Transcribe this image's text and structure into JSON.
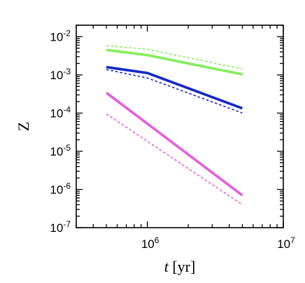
{
  "chart_data": {
    "type": "line",
    "x_scale": "log",
    "y_scale": "log",
    "xlim": [
      300000,
      10000000
    ],
    "ylim": [
      1e-07,
      0.02
    ],
    "grid": false,
    "legend": "none",
    "xlabel_italic": "t",
    "xlabel_rest": " [yr]",
    "ylabel": "Z",
    "x_ticks": [
      {
        "value": 1000000,
        "base": "10",
        "exp": "6"
      },
      {
        "value": 10000000,
        "base": "10",
        "exp": "7"
      }
    ],
    "y_ticks": [
      {
        "value": 1e-07,
        "base": "10",
        "exp": "-7"
      },
      {
        "value": 1e-06,
        "base": "10",
        "exp": "-6"
      },
      {
        "value": 1e-05,
        "base": "10",
        "exp": "-5"
      },
      {
        "value": 0.0001,
        "base": "10",
        "exp": "-4"
      },
      {
        "value": 0.001,
        "base": "10",
        "exp": "-3"
      },
      {
        "value": 0.01,
        "base": "10",
        "exp": "-2"
      }
    ],
    "series": [
      {
        "color": "#86ee5c",
        "style": "solid",
        "x": [
          500000,
          1000000,
          5000000
        ],
        "y": [
          0.0045,
          0.0033,
          0.00103
        ]
      },
      {
        "color": "#86ee5c",
        "style": "dashed",
        "x": [
          500000,
          1000000,
          5000000
        ],
        "y": [
          0.0058,
          0.0047,
          0.00142
        ]
      },
      {
        "color": "#1428c8",
        "style": "solid",
        "x": [
          500000,
          1000000,
          5000000
        ],
        "y": [
          0.0016,
          0.00112,
          0.000133
        ]
      },
      {
        "color": "#1428c8",
        "style": "dashed",
        "x": [
          500000,
          1000000,
          5000000
        ],
        "y": [
          0.00138,
          0.00083,
          0.0001
        ]
      },
      {
        "color": "#e85ce0",
        "style": "solid",
        "x": [
          500000,
          5000000
        ],
        "y": [
          0.00034,
          7e-07
        ]
      },
      {
        "color": "#e85ce0",
        "style": "dashed",
        "x": [
          500000,
          5000000
        ],
        "y": [
          9.5e-05,
          4e-07
        ]
      }
    ]
  }
}
